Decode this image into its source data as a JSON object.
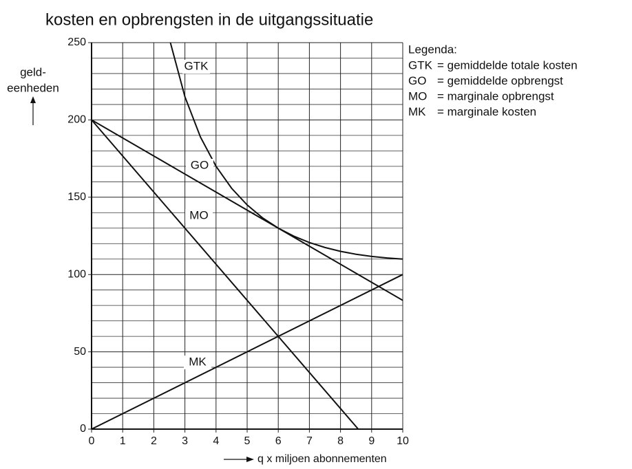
{
  "chart_data": {
    "type": "line",
    "title": "kosten en opbrengsten in de uitgangssituatie",
    "ylabel": [
      "geld-",
      "eenheden"
    ],
    "xlabel": "q x miljoen abonnementen",
    "xlim": [
      0,
      10
    ],
    "ylim": [
      0,
      250
    ],
    "xticks": [
      0,
      1,
      2,
      3,
      4,
      5,
      6,
      7,
      8,
      9,
      10
    ],
    "yticks": [
      0,
      50,
      100,
      150,
      200,
      250
    ],
    "y_minor_ticks": [
      10,
      20,
      30,
      40,
      60,
      70,
      80,
      90,
      110,
      120,
      130,
      140,
      160,
      170,
      180,
      190,
      210,
      220,
      230,
      240
    ],
    "grid": true,
    "color": "#111111",
    "series": [
      {
        "name": "GTK",
        "x": [
          2.5,
          3,
          3.5,
          4,
          4.5,
          5,
          5.5,
          6,
          6.5,
          7,
          7.5,
          8,
          8.5,
          9,
          9.5,
          10
        ],
        "values": [
          252.5,
          215,
          188.9,
          170,
          155.8,
          145,
          136.6,
          130,
          124.8,
          120.7,
          117.5,
          115,
          113.1,
          111.7,
          110.7,
          110
        ]
      },
      {
        "name": "GO",
        "x": [
          0,
          10
        ],
        "values": [
          200,
          83.3
        ]
      },
      {
        "name": "MO",
        "x": [
          0,
          8.57
        ],
        "values": [
          200,
          0
        ]
      },
      {
        "name": "MK",
        "x": [
          0,
          10
        ],
        "values": [
          0,
          100
        ]
      }
    ],
    "legend_title": "Legenda:",
    "legend": [
      {
        "label": "GTK",
        "text": "= gemiddelde totale kosten"
      },
      {
        "label": "GO",
        "text": "= gemiddelde opbrengst"
      },
      {
        "label": "MO",
        "text": "= marginale opbrengst"
      },
      {
        "label": "MK",
        "text": "= marginale kosten"
      }
    ]
  }
}
